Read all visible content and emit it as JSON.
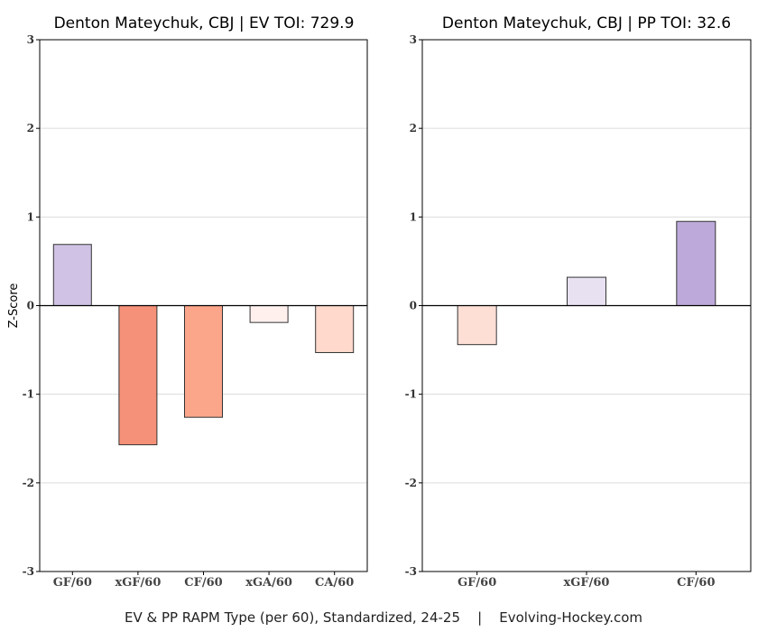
{
  "footer": "EV & PP RAPM Type (per 60), Standardized, 24-25    |    Evolving-Hockey.com",
  "chart_data": [
    {
      "type": "bar",
      "title": "Denton Mateychuk, CBJ  |  EV TOI: 729.9",
      "ylabel": "Z-Score",
      "ylim": [
        -3,
        3
      ],
      "yticks": [
        3,
        2,
        1,
        0,
        -1,
        -2,
        -3
      ],
      "grid": true,
      "categories": [
        "GF/60",
        "xGF/60",
        "CF/60",
        "xGA/60",
        "CA/60"
      ],
      "values": [
        0.69,
        -1.57,
        -1.26,
        -0.19,
        -0.53
      ],
      "colors": [
        "#d0c2e4",
        "#f59178",
        "#fba58b",
        "#fff0ed",
        "#fed9cc"
      ]
    },
    {
      "type": "bar",
      "title": "Denton Mateychuk, CBJ  |  PP TOI: 32.6",
      "ylabel": "",
      "ylim": [
        -3,
        3
      ],
      "yticks": [
        3,
        2,
        1,
        0,
        -1,
        -2,
        -3
      ],
      "grid": true,
      "categories": [
        "GF/60",
        "xGF/60",
        "CF/60"
      ],
      "values": [
        -0.44,
        0.32,
        0.95
      ],
      "colors": [
        "#fedfd6",
        "#e8e1f2",
        "#bda9da"
      ]
    }
  ]
}
